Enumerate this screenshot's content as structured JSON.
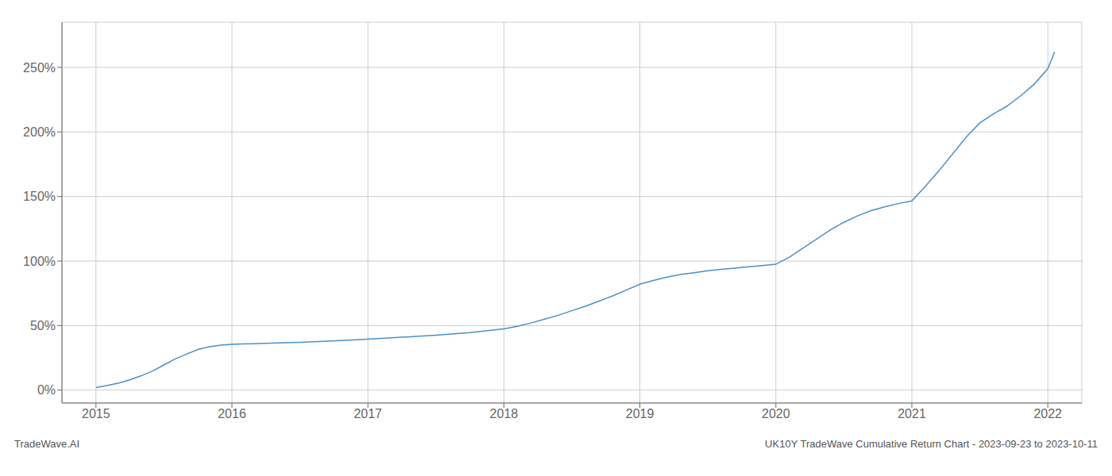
{
  "chart_data": {
    "type": "line",
    "title": "UK10Y TradeWave Cumulative Return Chart - 2023-09-23 to 2023-10-11",
    "annotations": [
      "TradeWave.AI"
    ],
    "x": [
      2015.0,
      2015.08,
      2015.17,
      2015.25,
      2015.33,
      2015.42,
      2015.5,
      2015.58,
      2015.67,
      2015.75,
      2015.83,
      2015.92,
      2016.0,
      2016.08,
      2016.17,
      2016.25,
      2016.33,
      2016.5,
      2016.67,
      2016.83,
      2017.0,
      2017.25,
      2017.5,
      2017.75,
      2018.0,
      2018.1,
      2018.2,
      2018.3,
      2018.4,
      2018.5,
      2018.6,
      2018.7,
      2018.8,
      2018.9,
      2019.0,
      2019.1,
      2019.2,
      2019.3,
      2019.4,
      2019.5,
      2019.6,
      2019.7,
      2019.8,
      2019.9,
      2020.0,
      2020.1,
      2020.2,
      2020.3,
      2020.4,
      2020.5,
      2020.6,
      2020.7,
      2020.8,
      2020.9,
      2021.0,
      2021.1,
      2021.2,
      2021.3,
      2021.4,
      2021.5,
      2021.6,
      2021.7,
      2021.8,
      2021.9,
      2022.0,
      2022.05
    ],
    "values": [
      2.0,
      3.5,
      5.5,
      8.0,
      11.0,
      15.0,
      19.5,
      24.0,
      28.0,
      31.5,
      33.5,
      34.8,
      35.5,
      35.8,
      36.0,
      36.2,
      36.5,
      37.0,
      37.8,
      38.5,
      39.5,
      41.0,
      42.5,
      44.5,
      47.5,
      49.5,
      52.0,
      55.0,
      58.0,
      61.5,
      65.0,
      69.0,
      73.0,
      77.5,
      82.0,
      85.0,
      87.5,
      89.5,
      91.0,
      92.5,
      93.5,
      94.5,
      95.5,
      96.5,
      97.5,
      103.0,
      110.0,
      117.0,
      124.0,
      130.0,
      135.0,
      139.0,
      142.0,
      144.5,
      146.5,
      158.0,
      170.0,
      183.0,
      196.0,
      207.0,
      214.0,
      220.0,
      228.0,
      237.0,
      249.0,
      262.0
    ],
    "color": "#4a90c4",
    "xlim": [
      2014.75,
      2022.25
    ],
    "ylim": [
      -10,
      285
    ],
    "xticks": [
      2015,
      2016,
      2017,
      2018,
      2019,
      2020,
      2021,
      2022
    ],
    "yticks": [
      {
        "value": 0,
        "label": "0%"
      },
      {
        "value": 50,
        "label": "50%"
      },
      {
        "value": 100,
        "label": "100%"
      },
      {
        "value": 150,
        "label": "150%"
      },
      {
        "value": 200,
        "label": "200%"
      },
      {
        "value": 250,
        "label": "250%"
      }
    ],
    "grid": true
  }
}
